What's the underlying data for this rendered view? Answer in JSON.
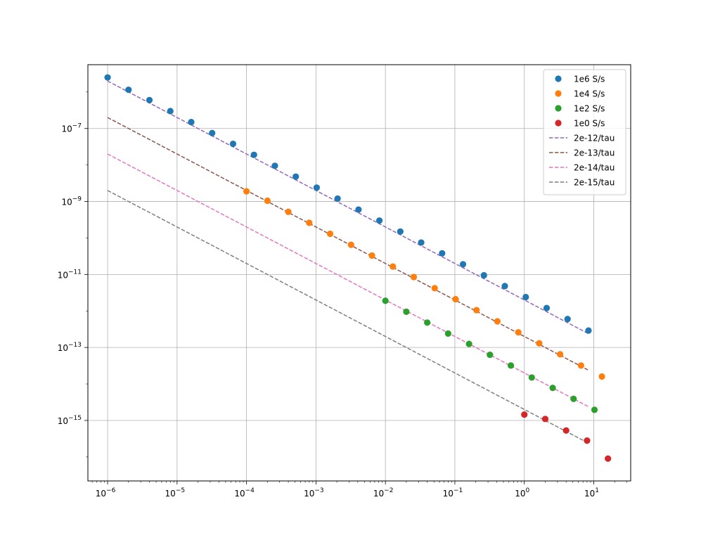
{
  "chart_data": {
    "type": "scatter",
    "xscale": "log",
    "yscale": "log",
    "xlim": [
      5.2e-07,
      34
    ],
    "ylim": [
      2.2e-17,
      5.6e-06
    ],
    "grid": true,
    "legend_position": "top-right",
    "x_ticks": [
      {
        "value": 1e-06,
        "base": "10",
        "exp": "−6"
      },
      {
        "value": 1e-05,
        "base": "10",
        "exp": "−5"
      },
      {
        "value": 0.0001,
        "base": "10",
        "exp": "−4"
      },
      {
        "value": 0.001,
        "base": "10",
        "exp": "−3"
      },
      {
        "value": 0.01,
        "base": "10",
        "exp": "−2"
      },
      {
        "value": 0.1,
        "base": "10",
        "exp": "−1"
      },
      {
        "value": 1,
        "base": "10",
        "exp": "0"
      },
      {
        "value": 10,
        "base": "10",
        "exp": "1"
      }
    ],
    "y_ticks": [
      {
        "value": 1e-15,
        "base": "10",
        "exp": "−15"
      },
      {
        "value": 1e-13,
        "base": "10",
        "exp": "−13"
      },
      {
        "value": 1e-11,
        "base": "10",
        "exp": "−11"
      },
      {
        "value": 1e-09,
        "base": "10",
        "exp": "−9"
      },
      {
        "value": 1e-07,
        "base": "10",
        "exp": "−7"
      }
    ],
    "series": [
      {
        "name": "1e6 S/s",
        "kind": "points",
        "color": "#1f77b4",
        "x": [
          1e-06,
          2e-06,
          4e-06,
          8e-06,
          1.6e-05,
          3.2e-05,
          6.4e-05,
          0.000128,
          0.000256,
          0.000512,
          0.001024,
          0.002048,
          0.004096,
          0.008192,
          0.016384,
          0.032768,
          0.065536,
          0.131,
          0.262,
          0.524,
          1.049,
          2.097,
          4.194,
          8.389
        ],
        "y": [
          2.5e-06,
          1.15e-06,
          6e-07,
          3e-07,
          1.5e-07,
          7.5e-08,
          3.8e-08,
          1.9e-08,
          9.5e-09,
          4.8e-09,
          2.4e-09,
          1.2e-09,
          6e-10,
          3e-10,
          1.5e-10,
          7.5e-11,
          3.8e-11,
          1.9e-11,
          9.5e-12,
          4.8e-12,
          2.4e-12,
          1.2e-12,
          6e-13,
          2.9e-13
        ]
      },
      {
        "name": "1e4 S/s",
        "kind": "points",
        "color": "#ff7f0e",
        "x": [
          0.0001,
          0.0002,
          0.0004,
          0.0008,
          0.0016,
          0.0032,
          0.0064,
          0.0128,
          0.0256,
          0.0512,
          0.1024,
          0.2048,
          0.4096,
          0.8192,
          1.6384,
          3.2768,
          6.5536,
          13.1
        ],
        "y": [
          1.9e-09,
          1.05e-09,
          5.2e-10,
          2.6e-10,
          1.3e-10,
          6.5e-11,
          3.3e-11,
          1.65e-11,
          8.5e-12,
          4.2e-12,
          2.1e-12,
          1.05e-12,
          5.2e-13,
          2.6e-13,
          1.3e-13,
          6.5e-14,
          3.2e-14,
          1.6e-14
        ]
      },
      {
        "name": "1e2 S/s",
        "kind": "points",
        "color": "#2ca02c",
        "x": [
          0.01,
          0.02,
          0.04,
          0.08,
          0.16,
          0.32,
          0.64,
          1.28,
          2.56,
          5.12,
          10.24
        ],
        "y": [
          1.9e-12,
          9.5e-13,
          4.8e-13,
          2.4e-13,
          1.25e-13,
          6.3e-14,
          3.2e-14,
          1.5e-14,
          7.8e-15,
          3.9e-15,
          1.95e-15
        ]
      },
      {
        "name": "1e0 S/s",
        "kind": "points",
        "color": "#d62728",
        "x": [
          1.0,
          2.0,
          4.0,
          8.0,
          16.0
        ],
        "y": [
          1.45e-15,
          1.1e-15,
          5.3e-16,
          2.8e-16,
          9e-17
        ]
      },
      {
        "name": "2e-12/tau",
        "kind": "line",
        "color": "#9467bd",
        "coef": 2e-12,
        "x_range": [
          1e-06,
          8.4
        ]
      },
      {
        "name": "2e-13/tau",
        "kind": "line",
        "color": "#8c564b",
        "coef": 2e-13,
        "x_range": [
          1e-06,
          8.4
        ]
      },
      {
        "name": "2e-14/tau",
        "kind": "line",
        "color": "#e377c2",
        "coef": 2e-14,
        "x_range": [
          1e-06,
          8.4
        ]
      },
      {
        "name": "2e-15/tau",
        "kind": "line",
        "color": "#7f7f7f",
        "coef": 2e-15,
        "x_range": [
          1e-06,
          8.4
        ]
      }
    ]
  }
}
